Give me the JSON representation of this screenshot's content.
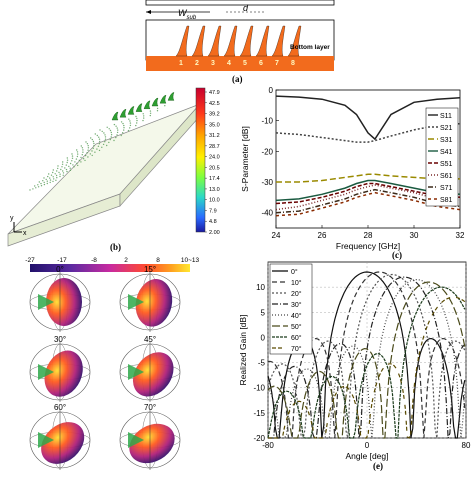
{
  "figure": {
    "panel_labels": {
      "a": "(a)",
      "b": "(b)",
      "c": "(c)",
      "e": "(e)"
    },
    "panel_a": {
      "wsub_label": "W",
      "wsub_sub": "sub",
      "d_label": "d",
      "layer_label": "Bottom layer",
      "port_numbers": [
        "1",
        "2",
        "3",
        "4",
        "5",
        "6",
        "7",
        "8"
      ]
    },
    "panel_b": {
      "colorbar_ticks": [
        "47.9",
        "42.5",
        "39.2",
        "35.0",
        "31.2",
        "28.7",
        "24.0",
        "20.5",
        "17.4",
        "13.0",
        "10.0",
        "7.9",
        "4.8",
        "2.00"
      ],
      "axis_y": "y",
      "axis_x": "x"
    },
    "panel_d": {
      "colorbar_ticks": [
        "-27",
        "-17",
        "-8",
        "2",
        "8",
        "10~13"
      ],
      "angles": [
        "0°",
        "15°",
        "30°",
        "45°",
        "60°",
        "70°"
      ]
    },
    "colors": {
      "substrate": "#eaf2d8",
      "copper": "#f26b1d",
      "patch": "#2e9e32"
    }
  },
  "chart_data": [
    {
      "type": "line",
      "panel": "c",
      "xlabel": "Frequency [GHz]",
      "ylabel": "S-Parameter [dB]",
      "xlim": [
        24,
        32
      ],
      "ylim": [
        -45,
        0
      ],
      "xticks": [
        "24",
        "26",
        "28",
        "30",
        "32"
      ],
      "yticks": [
        "0",
        "-10",
        "-20",
        "-30",
        "-40"
      ],
      "legend_position": "right",
      "x": [
        24,
        25,
        26,
        27,
        27.5,
        28,
        28.3,
        29,
        30,
        31,
        32
      ],
      "series": [
        {
          "name": "S11",
          "color": "#222222",
          "dash": "",
          "values": [
            -2,
            -2.3,
            -3,
            -5,
            -8,
            -14,
            -16,
            -8,
            -4,
            -3,
            -2.5
          ]
        },
        {
          "name": "S21",
          "color": "#444444",
          "dash": "2,2",
          "values": [
            -14,
            -14.5,
            -15.5,
            -16.5,
            -17,
            -17,
            -16.5,
            -15,
            -13,
            -11.5,
            -11
          ]
        },
        {
          "name": "S31",
          "color": "#9a8a00",
          "dash": "6,3",
          "values": [
            -30,
            -30,
            -29.5,
            -28.5,
            -28,
            -27.5,
            -27.5,
            -28,
            -28.5,
            -29,
            -29
          ]
        },
        {
          "name": "S41",
          "color": "#1a5a40",
          "dash": "",
          "values": [
            -36,
            -35.5,
            -34,
            -32,
            -30.5,
            -29.5,
            -29.5,
            -30.5,
            -32,
            -33.5,
            -34
          ]
        },
        {
          "name": "S51",
          "color": "#6a0000",
          "dash": "4,2",
          "values": [
            -37,
            -36.5,
            -35,
            -33,
            -31.5,
            -30.5,
            -30.5,
            -31.5,
            -33,
            -34.5,
            -35
          ]
        },
        {
          "name": "S61",
          "color": "#7a2a2a",
          "dash": "1,2",
          "values": [
            -39,
            -38,
            -36,
            -34,
            -32.5,
            -31.5,
            -31,
            -32,
            -33.5,
            -35.5,
            -36
          ]
        },
        {
          "name": "S71",
          "color": "#3a2a1a",
          "dash": "5,2,1,2",
          "values": [
            -40,
            -39.5,
            -37.5,
            -35.5,
            -34,
            -33,
            -32.5,
            -33.5,
            -35,
            -37,
            -38
          ]
        },
        {
          "name": "S81",
          "color": "#8a2a00",
          "dash": "3,3",
          "values": [
            -41,
            -40.5,
            -38.5,
            -36.5,
            -35,
            -34,
            -33.5,
            -34.5,
            -36,
            -38,
            -39
          ]
        }
      ]
    },
    {
      "type": "line",
      "panel": "e",
      "xlabel": "Angle [deg]",
      "ylabel": "Realized Gain [dB]",
      "xlim": [
        -80,
        80
      ],
      "ylim": [
        -20,
        15
      ],
      "xticks": [
        "-80",
        "0",
        "80"
      ],
      "yticks": [
        "10",
        "5",
        "0",
        "-5",
        "-10",
        "-15",
        "-20"
      ],
      "legend_position": "top-left",
      "series": [
        {
          "name": "0°",
          "color": "#111111",
          "dash": "",
          "peak_angle": 0,
          "peak_gain": 13
        },
        {
          "name": "10°",
          "color": "#333333",
          "dash": "5,3",
          "peak_angle": 10,
          "peak_gain": 13
        },
        {
          "name": "20°",
          "color": "#555555",
          "dash": "2,2",
          "peak_angle": 20,
          "peak_gain": 12.5
        },
        {
          "name": "30°",
          "color": "#222222",
          "dash": "6,2,1,2",
          "peak_angle": 30,
          "peak_gain": 12
        },
        {
          "name": "40°",
          "color": "#444444",
          "dash": "1,2",
          "peak_angle": 40,
          "peak_gain": 11.5
        },
        {
          "name": "50°",
          "color": "#4a4a1a",
          "dash": "8,3",
          "peak_angle": 50,
          "peak_gain": 11
        },
        {
          "name": "60°",
          "color": "#1a3a1a",
          "dash": "3,1",
          "peak_angle": 60,
          "peak_gain": 10
        },
        {
          "name": "70°",
          "color": "#5a4a00",
          "dash": "4,2,4,6",
          "peak_angle": 70,
          "peak_gain": 8
        }
      ]
    }
  ]
}
